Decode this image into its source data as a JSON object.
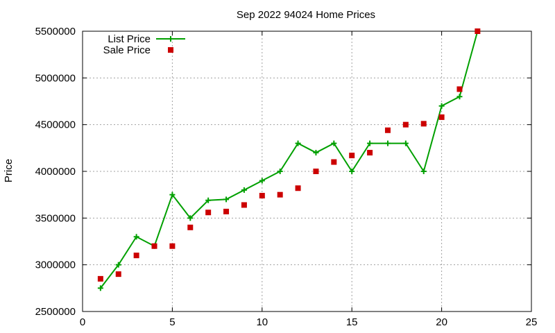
{
  "chart_data": {
    "type": "line",
    "title": "Sep 2022 94024 Home Prices",
    "xlabel": "",
    "ylabel": "Price",
    "xlim": [
      0,
      25
    ],
    "ylim": [
      2500000,
      5500000
    ],
    "xticks": [
      0,
      5,
      10,
      15,
      20,
      25
    ],
    "yticks": [
      2500000,
      3000000,
      3500000,
      4000000,
      4500000,
      5000000,
      5500000
    ],
    "grid": true,
    "legend_position": "top-left",
    "series": [
      {
        "name": "List Price",
        "style": "line-points",
        "marker": "plus",
        "color": "#00a000",
        "x": [
          1,
          2,
          3,
          4,
          5,
          6,
          7,
          8,
          9,
          10,
          11,
          12,
          13,
          14,
          15,
          16,
          17,
          18,
          19,
          20,
          21,
          22
        ],
        "y": [
          2750000,
          3000000,
          3300000,
          3200000,
          3750000,
          3500000,
          3690000,
          3700000,
          3800000,
          3900000,
          4000000,
          4300000,
          4200000,
          4300000,
          4000000,
          4300000,
          4300000,
          4300000,
          4000000,
          4700000,
          4800000,
          5500000
        ]
      },
      {
        "name": "Sale Price",
        "style": "points",
        "marker": "square",
        "color": "#cc0000",
        "x": [
          1,
          2,
          3,
          4,
          5,
          6,
          7,
          8,
          9,
          10,
          11,
          12,
          13,
          14,
          15,
          16,
          17,
          18,
          19,
          20,
          21,
          22
        ],
        "y": [
          2850000,
          2900000,
          3100000,
          3200000,
          3200000,
          3400000,
          3560000,
          3570000,
          3640000,
          3740000,
          3750000,
          3820000,
          4000000,
          4100000,
          4170000,
          4200000,
          4440000,
          4500000,
          4510000,
          4580000,
          4880000,
          5500000
        ]
      }
    ]
  }
}
